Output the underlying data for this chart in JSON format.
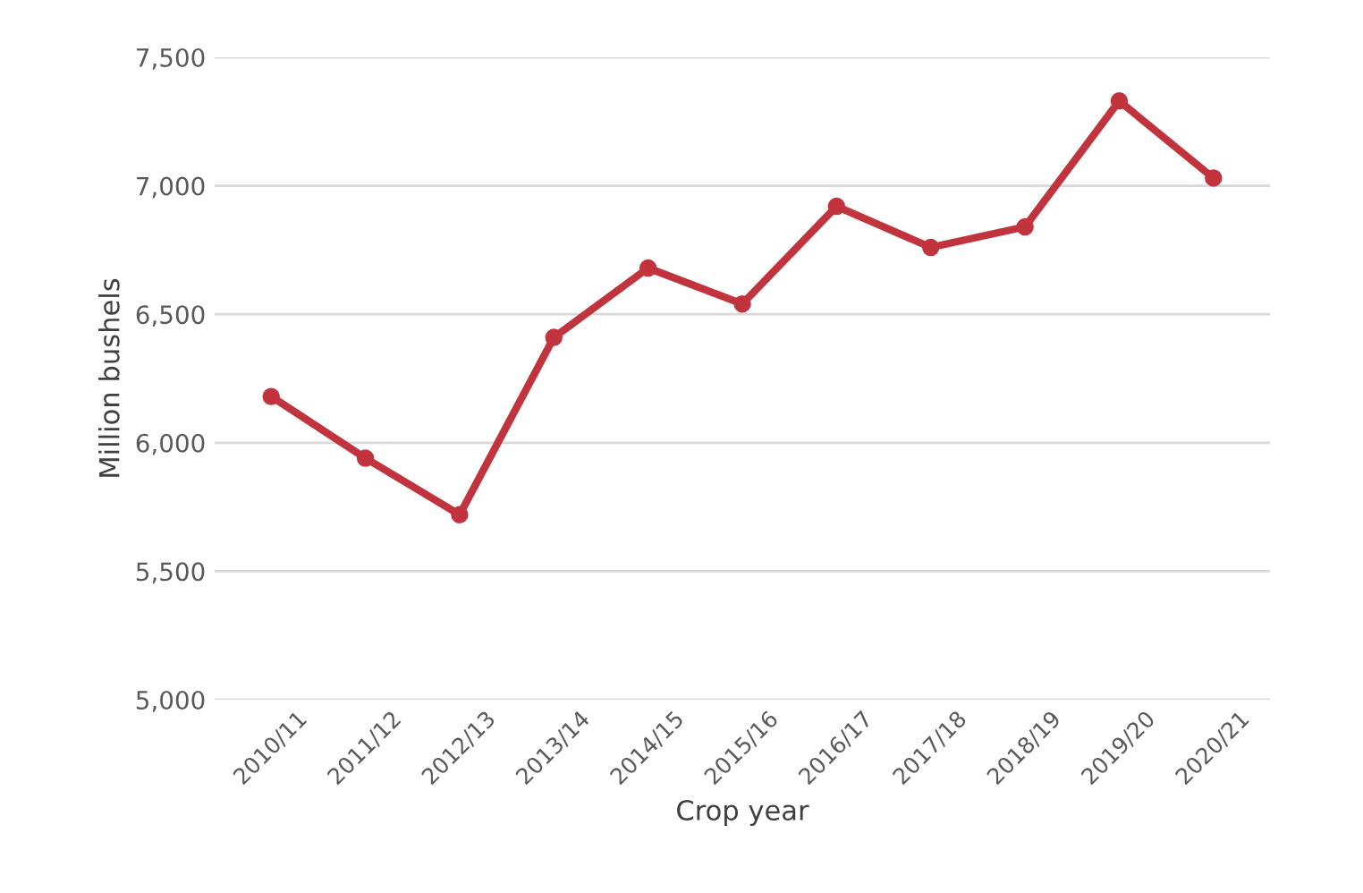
{
  "chart_data": {
    "type": "line",
    "xlabel": "Crop year",
    "ylabel": "Million bushels",
    "categories": [
      "2010/11",
      "2011/12",
      "2012/13",
      "2013/14",
      "2014/15",
      "2015/16",
      "2016/17",
      "2017/18",
      "2018/19",
      "2019/20",
      "2020/21"
    ],
    "series": [
      {
        "color": "#c1343e",
        "values": [
          6180,
          5940,
          5720,
          6410,
          6680,
          6540,
          6920,
          6760,
          6840,
          7330,
          7030
        ]
      }
    ],
    "ylim": [
      5000,
      7500
    ],
    "yticks": [
      {
        "value": 5000,
        "label": "5,000"
      },
      {
        "value": 5500,
        "label": "5,500"
      },
      {
        "value": 6000,
        "label": "6,000"
      },
      {
        "value": 6500,
        "label": "6,500"
      },
      {
        "value": 7000,
        "label": "7,000"
      },
      {
        "value": 7500,
        "label": "7,500"
      }
    ],
    "grid": "y",
    "marker": "circle",
    "line_style": "solid",
    "legend": false
  }
}
